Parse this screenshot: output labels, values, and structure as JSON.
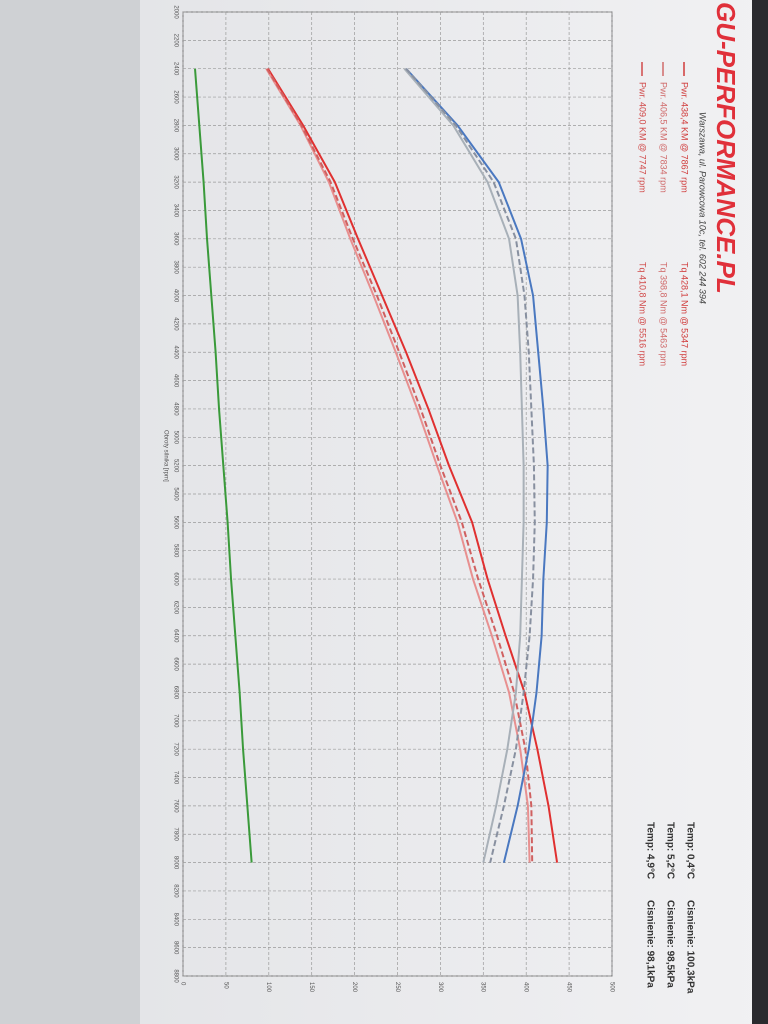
{
  "chart_data": {
    "type": "line",
    "brand": "GU-PERFORMANCE.PL",
    "address": "Warszawa, ul. Parowcowa 10c, tel. 602 244 394",
    "legend": [
      {
        "power": "Pwr. 438,4 KM @ 7867 rpm",
        "torque": "Tq 428,1 Nm @ 5347 rpm",
        "color": "#d03a3a"
      },
      {
        "power": "Pwr. 406,5 KM @ 7834 rpm",
        "torque": "Tq 398,8 Nm @ 5463 rpm",
        "color": "#d06a6a"
      },
      {
        "power": "Pwr. 409,0 KM @ 7747 rpm",
        "torque": "Tq 410,8 Nm @ 5516 rpm",
        "color": "#d04a4a"
      }
    ],
    "conditions": [
      {
        "temp": "Temp: 0,4°C",
        "pressure": "Cisnienie: 100,3kPa"
      },
      {
        "temp": "Temp: 5,2°C",
        "pressure": "Cisnienie: 98,5kPa"
      },
      {
        "temp": "Temp: 4,9°C",
        "pressure": "Cisnienie: 98,1kPa"
      }
    ],
    "x_label": "Obroty silnika [rpm]",
    "x": [
      2400,
      2800,
      3200,
      3600,
      4000,
      4400,
      4800,
      5200,
      5600,
      6000,
      6400,
      6800,
      7200,
      7600,
      8000
    ],
    "series": [
      {
        "color": "#e03030",
        "dash": false,
        "values": [
          99,
          140,
          177,
          204,
          232,
          260,
          286,
          310,
          337,
          355,
          376,
          398,
          413,
          426,
          436
        ]
      },
      {
        "color": "#e89090",
        "dash": false,
        "values": [
          97,
          137,
          170,
          195,
          222,
          248,
          273,
          296,
          320,
          338,
          360,
          380,
          393,
          402,
          404
        ]
      },
      {
        "color": "#d06060",
        "dash": true,
        "values": [
          98,
          138,
          172,
          198,
          226,
          252,
          277,
          300,
          325,
          344,
          366,
          386,
          399,
          406,
          407
        ]
      },
      {
        "color": "#4a78c0",
        "dash": false,
        "values": [
          260,
          320,
          368,
          394,
          408,
          414,
          420,
          425,
          424,
          420,
          418,
          412,
          403,
          390,
          374
        ]
      },
      {
        "color": "#a8b0b8",
        "dash": false,
        "values": [
          258,
          315,
          355,
          380,
          390,
          393,
          395,
          397,
          397,
          395,
          393,
          388,
          378,
          365,
          350
        ]
      },
      {
        "color": "#8890a0",
        "dash": true,
        "values": [
          260,
          318,
          362,
          388,
          398,
          403,
          406,
          409,
          410,
          408,
          404,
          397,
          388,
          374,
          358
        ]
      },
      {
        "color": "#3a9a3a",
        "dash": false,
        "values": [
          14,
          19,
          24,
          28,
          33,
          38,
          42,
          47,
          52,
          56,
          61,
          66,
          70,
          75,
          80
        ]
      }
    ],
    "xlim": [
      2000,
      8800
    ],
    "xticks": [
      2000,
      2200,
      2400,
      2600,
      2800,
      3000,
      3200,
      3400,
      3600,
      3800,
      4000,
      4200,
      4400,
      4600,
      4800,
      5000,
      5200,
      5400,
      5600,
      5800,
      6000,
      6200,
      6400,
      6600,
      6800,
      7000,
      7200,
      7400,
      7600,
      7800,
      8000,
      8200,
      8400,
      8600,
      8800
    ],
    "ylim": [
      0,
      500
    ],
    "yticks": [
      0,
      50,
      100,
      150,
      200,
      250,
      300,
      350,
      400,
      450,
      500
    ],
    "grid": true
  }
}
